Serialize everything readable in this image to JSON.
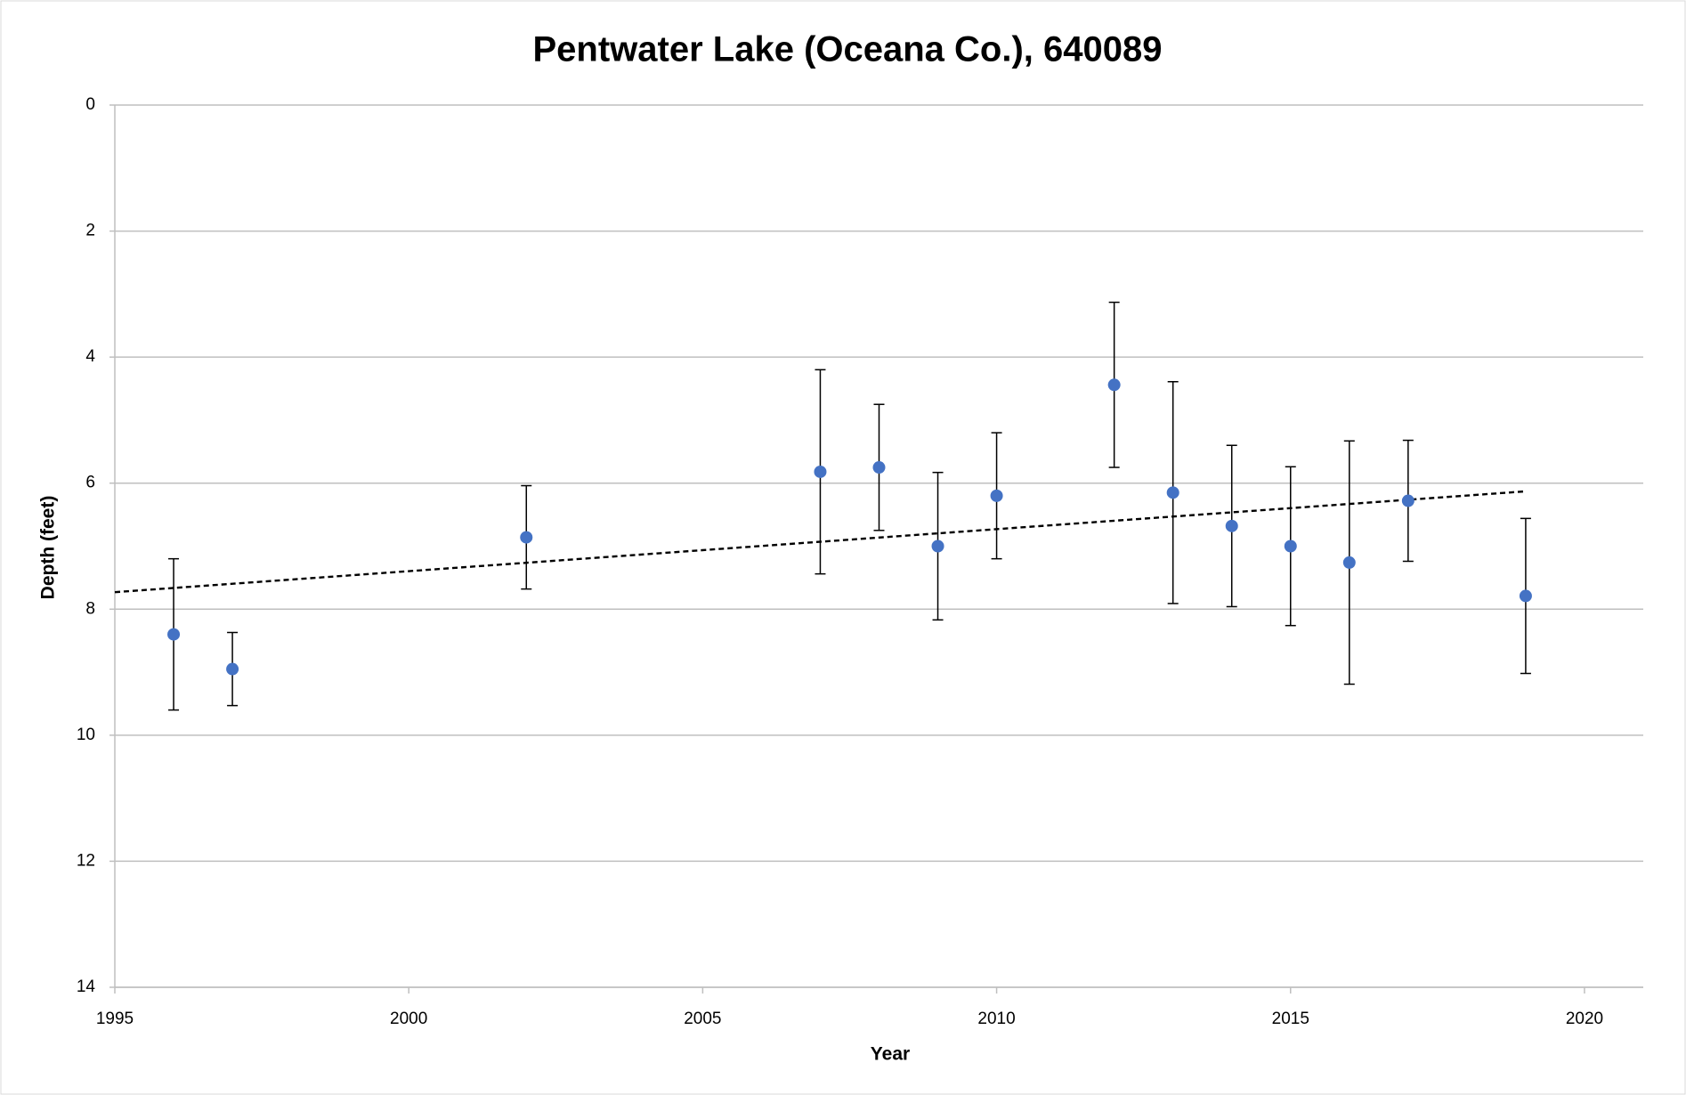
{
  "chart_data": {
    "type": "scatter",
    "title": "Pentwater Lake (Oceana Co.), 640089",
    "x_label": "Year",
    "y_label": "Depth (feet)",
    "x": [
      1996,
      1997,
      2002,
      2007,
      2008,
      2009,
      2010,
      2012,
      2013,
      2014,
      2015,
      2016,
      2017,
      2019
    ],
    "values": [
      8.4,
      8.95,
      6.86,
      5.82,
      5.75,
      7.0,
      6.2,
      4.44,
      6.15,
      6.68,
      7.0,
      7.26,
      6.28,
      7.79
    ],
    "errors": [
      1.2,
      0.58,
      0.82,
      1.62,
      1.0,
      1.17,
      1.0,
      1.31,
      1.76,
      1.28,
      1.26,
      1.93,
      0.96,
      1.23
    ],
    "color": "#4472c4",
    "trendline": {
      "x": [
        1995,
        2019
      ],
      "values": [
        7.73,
        6.13
      ]
    },
    "xlim": [
      1995,
      2021
    ],
    "xticks": [
      1995,
      2000,
      2005,
      2010,
      2015,
      2020
    ],
    "ylim": [
      0,
      14
    ],
    "yticks": [
      0,
      2,
      4,
      6,
      8,
      10,
      12,
      14
    ],
    "y_inverted": true,
    "grid": true
  }
}
